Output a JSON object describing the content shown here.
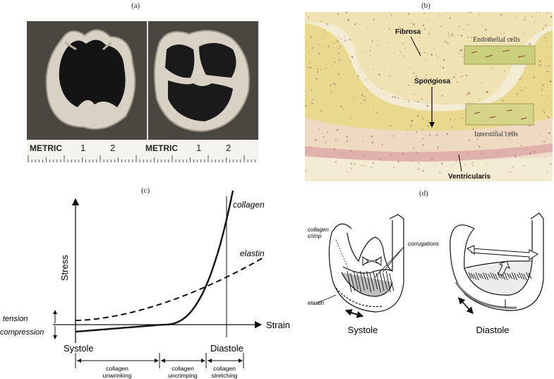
{
  "panels": {
    "a": {
      "label": "(a)",
      "ruler_left": {
        "metric": "METRIC",
        "n1": "1",
        "n2": "2"
      },
      "ruler_right": {
        "metric": "METRIC",
        "n1": "1",
        "n2": "2"
      }
    },
    "b": {
      "label": "(b)",
      "fibrosa": "Fibrosa",
      "spongiosa": "Spongiosa",
      "ventricularis": "Ventricularis",
      "endothelial": "Endothelial cells",
      "interstitial": "Interstitial cells"
    },
    "c": {
      "label": "(c)",
      "y_axis": "Stress",
      "x_axis": "Strain",
      "tension": "tension",
      "compression": "compression",
      "systole": "Systole",
      "diastole": "Diastole",
      "curve_collagen": "collagen",
      "curve_elastin": "elastin",
      "ranges": [
        {
          "line1": "collagen",
          "line2": "unwrinking"
        },
        {
          "line1": "collagen",
          "line2": "uncrimping"
        },
        {
          "line1": "collagen",
          "line2": "stretching"
        }
      ]
    },
    "d": {
      "label": "(d)",
      "collagen_crimp_1": "collagen",
      "collagen_crimp_2": "crimp",
      "corrugations": "corrugations",
      "elastin": "elastin",
      "systole": "Systole",
      "diastole": "Diastole"
    }
  },
  "colors": {
    "photo_dark": "#2a2a2a",
    "tissue_bg": "#e9d98a",
    "tissue_pink": "#d9a3a0",
    "inset_green": "#c9cf7a"
  }
}
